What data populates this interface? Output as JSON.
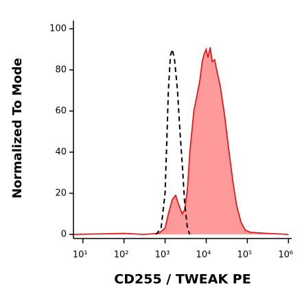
{
  "chart_data": {
    "type": "area",
    "x_label": "CD255 / TWEAK PE",
    "y_label": "Normalized To Mode",
    "x_scale": "log",
    "xlim": [
      5.9,
      1200000
    ],
    "xticks": [
      {
        "value": 10,
        "label": "10¹"
      },
      {
        "value": 100,
        "label": "10²"
      },
      {
        "value": 1000,
        "label": "10³"
      },
      {
        "value": 10000,
        "label": "10⁴"
      },
      {
        "value": 100000,
        "label": "10⁵"
      },
      {
        "value": 1000000,
        "label": "10⁶"
      }
    ],
    "ylim": [
      -2,
      104
    ],
    "yticks": [
      0,
      20,
      40,
      60,
      80,
      100
    ],
    "series": [
      {
        "color": "#e31a1c",
        "fill": "#ff9a9a",
        "dashed": false,
        "x": [
          6,
          100,
          300,
          700,
          1000,
          1200,
          1500,
          1800,
          2100,
          2600,
          3000,
          3500,
          4000,
          5000,
          6000,
          7000,
          8000,
          9000,
          10000,
          11000,
          12500,
          14000,
          16000,
          18000,
          22000,
          28000,
          35000,
          45000,
          55000,
          70000,
          90000,
          120000,
          300000,
          1000000
        ],
        "values": [
          0,
          0.5,
          0,
          0.5,
          3,
          10,
          17,
          19,
          15,
          10,
          12,
          22,
          40,
          60,
          68,
          75,
          84,
          88,
          90,
          86,
          91,
          84,
          85,
          80,
          72,
          58,
          42,
          25,
          14,
          6,
          2,
          1,
          0.5,
          0
        ]
      },
      {
        "color": "#000000",
        "fill": null,
        "dashed": true,
        "x": [
          600,
          800,
          1000,
          1100,
          1200,
          1350,
          1500,
          1700,
          2000,
          2300,
          2600,
          3000,
          3500,
          4000
        ],
        "values": [
          0,
          3,
          20,
          45,
          70,
          87,
          90,
          85,
          70,
          50,
          35,
          15,
          3,
          0
        ]
      }
    ]
  }
}
